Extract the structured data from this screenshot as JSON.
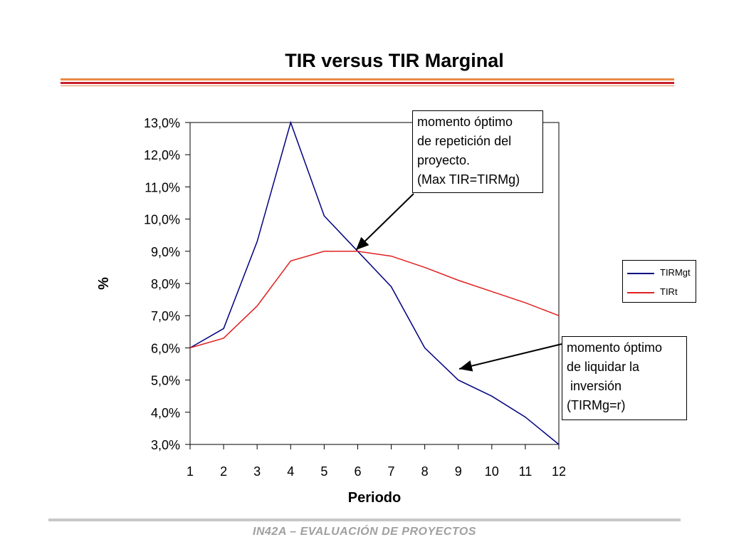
{
  "slide": {
    "title": "TIR versus TIR Marginal",
    "footer": "IN42A – EVALUACIÓN DE PROYECTOS"
  },
  "legend": {
    "items": [
      {
        "label": "TIRMgt",
        "color": "#000080"
      },
      {
        "label": "TIRt",
        "color": "#e02020"
      }
    ]
  },
  "annotations": {
    "optimal_repetition": "momento óptimo\nde repetición del\nproyecto.\n(Max TIR=TIRMg)",
    "optimal_liquidation": "momento óptimo\nde liquidar la\n inversión\n(TIRMg=r)"
  },
  "chart_data": {
    "type": "line",
    "title": "TIR versus TIR Marginal",
    "xlabel": "Periodo",
    "ylabel": "%",
    "categories": [
      1,
      2,
      3,
      4,
      5,
      6,
      7,
      8,
      9,
      10,
      11,
      12
    ],
    "series": [
      {
        "name": "TIRMgt",
        "color": "#000080",
        "values": [
          6.0,
          6.6,
          9.3,
          13.0,
          10.1,
          9.0,
          7.9,
          6.0,
          5.0,
          4.5,
          3.85,
          3.0
        ]
      },
      {
        "name": "TIRt",
        "color": "#e02020",
        "values": [
          6.0,
          6.3,
          7.3,
          8.7,
          9.0,
          9.0,
          8.85,
          8.5,
          8.1,
          7.75,
          7.4,
          7.0
        ]
      }
    ],
    "ylim": [
      3.0,
      13.0
    ],
    "yticks": [
      "3,0%",
      "4,0%",
      "5,0%",
      "6,0%",
      "7,0%",
      "8,0%",
      "9,0%",
      "10,0%",
      "11,0%",
      "12,0%",
      "13,0%"
    ],
    "grid": true,
    "legend_position": "right"
  }
}
